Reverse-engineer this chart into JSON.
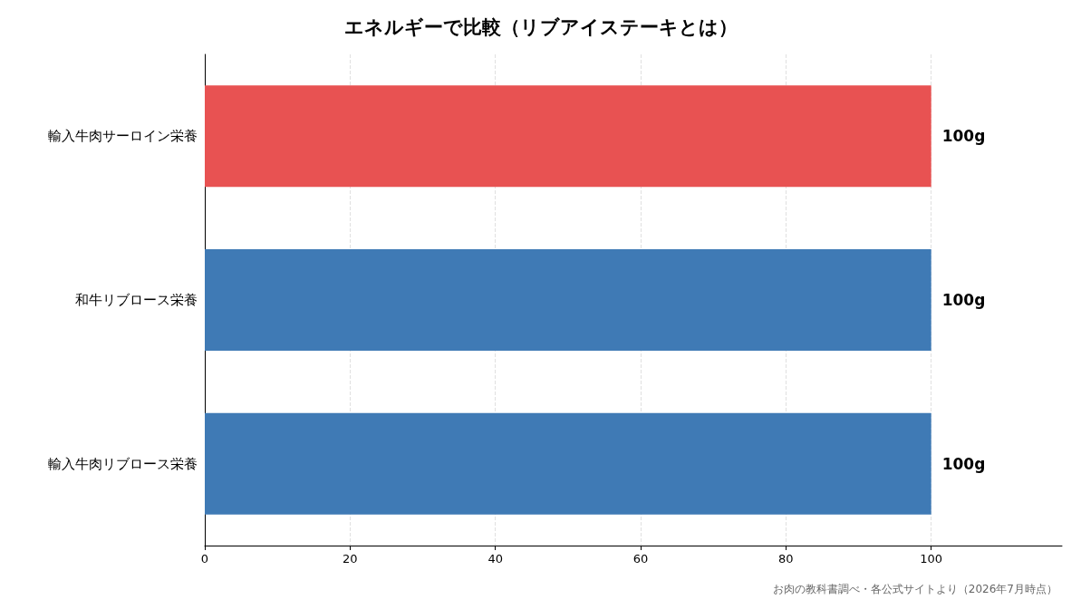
{
  "chart_data": {
    "type": "bar",
    "orientation": "horizontal",
    "title": "エネルギーで比較（リブアイステーキとは）",
    "categories": [
      "輸入牛肉サーロイン栄養",
      "和牛リブロース栄養",
      "輸入牛肉リブロース栄養"
    ],
    "values": [
      100,
      100,
      100
    ],
    "colors": [
      "#e85252",
      "#3f7ab5",
      "#3f7ab5"
    ],
    "value_labels": [
      "100g",
      "100g",
      "100g"
    ],
    "xlim": [
      0,
      118
    ],
    "xticks": [
      0,
      20,
      40,
      60,
      80,
      100
    ],
    "grid": "x",
    "annotations": [
      "お肉の教科書調べ・各公式サイトより（2026年7月時点）"
    ]
  }
}
